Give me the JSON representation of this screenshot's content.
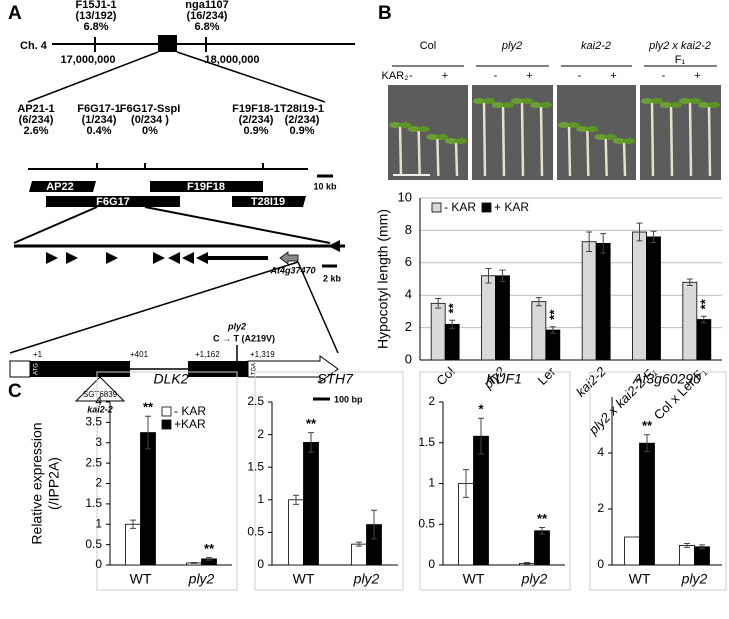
{
  "panel_labels": [
    "A",
    "B",
    "C"
  ],
  "map": {
    "chromosome": "Ch. 4",
    "markers": [
      {
        "name": "F15J1-1",
        "ratio": "(13/192)",
        "percent": "6.8%"
      },
      {
        "name": "nga1107",
        "ratio": "(16/234)",
        "percent": "6.8%"
      }
    ],
    "positions": [
      "17,000,000",
      "18,000,000"
    ],
    "fine_markers": [
      {
        "name": "AP21-1",
        "ratio": "(6/234)",
        "percent": "2.6%"
      },
      {
        "name": "F6G17-1",
        "ratio": "(1/234)",
        "percent": "0.4%"
      },
      {
        "name": "F6G17-SspI",
        "ratio": "(0/234 )",
        "percent": "0%"
      },
      {
        "name": "F19F18-1",
        "ratio": "(2/234)",
        "percent": "0.9%"
      },
      {
        "name": "T28I19-1",
        "ratio": "(2/234)",
        "percent": "0.9%"
      }
    ],
    "bacs": [
      "AP22",
      "F19F18",
      "F6G17",
      "T28I19"
    ],
    "bac_scale": "10 kb",
    "gene_id": "At4g37470",
    "gene_scale": "2 kb",
    "gene": {
      "starts": [
        "+1",
        "+401",
        "+1,162",
        "+1,319"
      ],
      "start_codon": "ATG",
      "stop_codon": "TGA",
      "mutation": "ply2",
      "change": "C → T (A219V)",
      "insertion": "SGT6839",
      "insertion_allele": "kai2-2",
      "scale": "100 bp"
    }
  },
  "photo": {
    "genotypes": [
      "Col",
      "ply2",
      "kai2-2",
      "ply2 x kai2-2"
    ],
    "generation": "F₁",
    "treatment": "KAR₂",
    "levels": [
      "-",
      "+"
    ]
  },
  "chart_data": [
    {
      "type": "bar",
      "ylabel": "Hypocotyl length (mm)",
      "categories": [
        "Col",
        "ply2",
        "Ler",
        "kai2-2",
        "ply2 x kai2-2 F₁",
        "Col x Ler F₁"
      ],
      "series": [
        {
          "name": "- KAR",
          "color": "#d9d9d9",
          "values": [
            3.5,
            5.2,
            3.6,
            7.3,
            7.9,
            4.8
          ],
          "errors": [
            0.3,
            0.45,
            0.25,
            0.6,
            0.55,
            0.2
          ],
          "significance": [
            null,
            null,
            null,
            null,
            null,
            null
          ]
        },
        {
          "name": "+ KAR",
          "color": "#000000",
          "values": [
            2.2,
            5.2,
            1.85,
            7.2,
            7.6,
            2.5
          ],
          "errors": [
            0.25,
            0.35,
            0.2,
            0.6,
            0.35,
            0.2
          ],
          "significance": [
            "**",
            null,
            "**",
            null,
            null,
            "**"
          ]
        }
      ],
      "ylim": [
        0,
        10
      ],
      "yticks": [
        0,
        2,
        4,
        6,
        8,
        10
      ],
      "grid": true
    },
    {
      "type": "bar",
      "title": "DLK2",
      "ylabel": [
        "Relative expression",
        "(/IPP2A)"
      ],
      "categories": [
        "WT",
        "ply2"
      ],
      "series": [
        {
          "name": "- KAR",
          "color": "#ffffff",
          "values": [
            1.0,
            0.05
          ],
          "errors": [
            0.1,
            0.01
          ],
          "significance": [
            null,
            null
          ]
        },
        {
          "name": "+KAR",
          "color": "#000000",
          "values": [
            3.25,
            0.15
          ],
          "errors": [
            0.4,
            0.03
          ],
          "significance": [
            "**",
            "**"
          ]
        }
      ],
      "ylim": [
        0,
        4
      ],
      "yticks": [
        0,
        0.5,
        1,
        1.5,
        2,
        2.5,
        3,
        3.5,
        4
      ],
      "grid": false
    },
    {
      "type": "bar",
      "title": "STH7",
      "categories": [
        "WT",
        "ply2"
      ],
      "series": [
        {
          "color": "#ffffff",
          "values": [
            1.0,
            0.32
          ],
          "errors": [
            0.07,
            0.03
          ],
          "significance": [
            null,
            null
          ]
        },
        {
          "color": "#000000",
          "values": [
            1.88,
            0.62
          ],
          "errors": [
            0.15,
            0.22
          ],
          "significance": [
            "**",
            null
          ]
        }
      ],
      "ylim": [
        0,
        2.5
      ],
      "yticks": [
        0,
        0.5,
        1,
        1.5,
        2,
        2.5
      ],
      "grid": false
    },
    {
      "type": "bar",
      "title": "KUF1",
      "categories": [
        "WT",
        "ply2"
      ],
      "series": [
        {
          "color": "#ffffff",
          "values": [
            1.0,
            0.02
          ],
          "errors": [
            0.17,
            0.01
          ],
          "significance": [
            null,
            null
          ]
        },
        {
          "color": "#000000",
          "values": [
            1.58,
            0.42
          ],
          "errors": [
            0.22,
            0.04
          ],
          "significance": [
            "*",
            "**"
          ]
        }
      ],
      "ylim": [
        0,
        2
      ],
      "yticks": [
        0,
        0.5,
        1,
        1.5,
        2
      ],
      "grid": false
    },
    {
      "type": "bar",
      "title": "At3g60290",
      "categories": [
        "WT",
        "ply2"
      ],
      "series": [
        {
          "color": "#ffffff",
          "values": [
            1.0,
            0.7
          ],
          "errors": [
            0.0,
            0.07
          ],
          "significance": [
            null,
            null
          ]
        },
        {
          "color": "#000000",
          "values": [
            4.35,
            0.65
          ],
          "errors": [
            0.3,
            0.07
          ],
          "significance": [
            "**",
            null
          ]
        }
      ],
      "ylim": [
        0,
        6
      ],
      "yticks": [
        0,
        2,
        4
      ],
      "grid": false
    }
  ]
}
